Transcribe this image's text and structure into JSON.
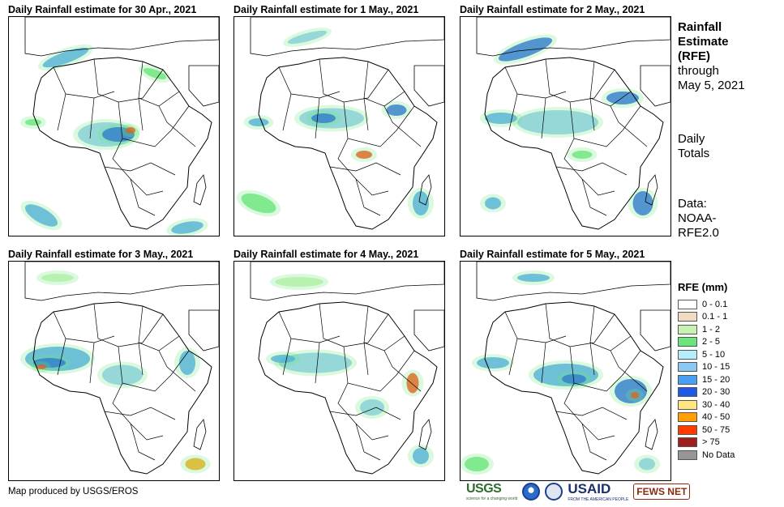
{
  "panels": [
    {
      "title": "Daily Rainfall estimate for 30 Apr., 2021"
    },
    {
      "title": "Daily Rainfall estimate for 1 May., 2021"
    },
    {
      "title": "Daily Rainfall estimate for 2 May., 2021"
    },
    {
      "title": "Daily Rainfall estimate for 3 May., 2021"
    },
    {
      "title": "Daily Rainfall estimate for 4 May., 2021"
    },
    {
      "title": "Daily Rainfall estimate for 5 May., 2021"
    }
  ],
  "side_info": {
    "title_lines": [
      "Rainfall",
      "Estimate",
      "(RFE)"
    ],
    "through_lines": [
      "through",
      "May 5, 2021"
    ],
    "totals_lines": [
      "Daily",
      "Totals"
    ],
    "data_lines": [
      "Data:",
      "NOAA-",
      "RFE2.0"
    ]
  },
  "legend": {
    "title": "RFE (mm)",
    "items": [
      {
        "label": "0 - 0.1",
        "color": "#ffffff"
      },
      {
        "label": "0.1 - 1",
        "color": "#f0dcc0"
      },
      {
        "label": "1 - 2",
        "color": "#c8f2b4"
      },
      {
        "label": "2 - 5",
        "color": "#6ae67a"
      },
      {
        "label": "5 - 10",
        "color": "#b4eef8"
      },
      {
        "label": "10 - 15",
        "color": "#8cc8f4"
      },
      {
        "label": "15 - 20",
        "color": "#4aa0f0"
      },
      {
        "label": "20 - 30",
        "color": "#1e5ae6"
      },
      {
        "label": "30 - 40",
        "color": "#ffe680"
      },
      {
        "label": "40 - 50",
        "color": "#ffa000"
      },
      {
        "label": "50 - 75",
        "color": "#ff3c00"
      },
      {
        "label": "> 75",
        "color": "#a01e1e"
      },
      {
        "label": "No Data",
        "color": "#969696"
      }
    ]
  },
  "credit": "Map produced by USGS/EROS",
  "logos": {
    "usgs": "USGS",
    "usgs_tagline": "science for a changing world",
    "noaa": "noaa-logo",
    "usaid": "USAID",
    "usaid_tagline": "FROM THE AMERICAN PEOPLE",
    "fews": "FEWS NET"
  }
}
